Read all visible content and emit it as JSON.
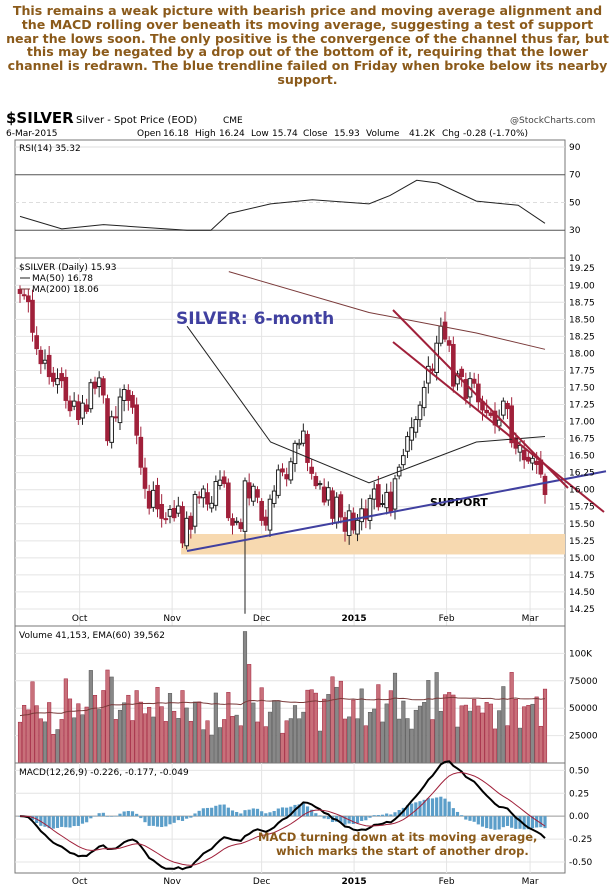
{
  "commentary": "This remains a weak picture with bearish price and moving average alignment and the MACD rolling over beneath its moving average, suggesting a test of support near the lows soon. The only positive is the convergence of the channel thus far, but this may be negated by a drop out of the bottom of it, requiring that the lower channel is redrawn. The blue trendline failed on Friday when broke below its nearby support.",
  "header": {
    "symbol": "$SILVER",
    "description": "Silver - Spot Price (EOD)",
    "exchange": "CME",
    "watermark": "@StockCharts.com",
    "date": "6-Mar-2015",
    "open_label": "Open",
    "open": "16.18",
    "high_label": "High",
    "high": "16.24",
    "low_label": "Low",
    "low": "15.74",
    "close_label": "Close",
    "close": "15.93",
    "volume_label": "Volume",
    "volume": "41.2K",
    "chg_label": "Chg",
    "chg": "-0.28 (-1.70%)"
  },
  "colors": {
    "up": "#222222",
    "down": "#a0203a",
    "ma50": "#222222",
    "ma200": "#7a3a3a",
    "trend_blue": "#4040a0",
    "channel": "#a0203a",
    "support": "#f7d9b0",
    "annotation": "#8b5a1a"
  },
  "chart_data": [
    {
      "type": "line",
      "title": "RSI(14) 35.32",
      "ylim": [
        10,
        95
      ],
      "yticks": [
        "90",
        "70",
        "50",
        "30",
        "10"
      ],
      "x": [
        "2014-09-11",
        "2014-09-25",
        "2014-10-09",
        "2014-10-23",
        "2014-11-06",
        "2014-11-14",
        "2014-11-20",
        "2014-12-04",
        "2014-12-18",
        "2015-01-06",
        "2015-01-13",
        "2015-01-22",
        "2015-01-29",
        "2015-02-11",
        "2015-02-25",
        "2015-03-06"
      ],
      "values": [
        40,
        31,
        34,
        32,
        30,
        30,
        42,
        49,
        52,
        49,
        55,
        66,
        64,
        51,
        48,
        35
      ]
    },
    {
      "type": "candlestick",
      "title": "$SILVER (Daily) 15.93",
      "ylim": [
        14.0,
        19.4
      ],
      "yticks": [
        "19.25",
        "19.00",
        "18.75",
        "18.50",
        "18.25",
        "18.00",
        "17.75",
        "17.50",
        "17.25",
        "17.00",
        "16.75",
        "16.50",
        "16.25",
        "16.00",
        "15.75",
        "15.50",
        "15.25",
        "15.00",
        "14.75",
        "14.50",
        "14.25"
      ],
      "xticks": [
        "Oct",
        "Nov",
        "Dec",
        "2015",
        "Feb",
        "Mar"
      ],
      "legend": [
        "MA(50) 16.78",
        "MA(200) 18.06"
      ],
      "annotations": [
        "SILVER: 6-month",
        "SUPPORT"
      ],
      "ma50": {
        "x": [
          "2014-11-06",
          "2014-12-04",
          "2015-01-06",
          "2015-02-11",
          "2015-03-06"
        ],
        "values": [
          18.4,
          16.7,
          16.1,
          16.7,
          16.78
        ]
      },
      "ma200": {
        "x": [
          "2014-11-20",
          "2015-01-06",
          "2015-02-11",
          "2015-03-06"
        ],
        "values": [
          19.2,
          18.6,
          18.3,
          18.06
        ]
      },
      "support": [
        15.05,
        15.35
      ],
      "trendline": {
        "x": [
          "2014-11-06",
          "2015-03-06"
        ],
        "values": [
          15.1,
          16.1
        ]
      },
      "close": [
        18.88,
        18.85,
        18.76,
        18.31,
        18.07,
        17.85,
        17.9,
        17.66,
        17.59,
        17.63,
        17.6,
        17.31,
        17.16,
        17.3,
        17.03,
        17.27,
        17.15,
        17.57,
        17.49,
        17.64,
        17.39,
        16.72,
        17.07,
        17.06,
        17.36,
        17.47,
        17.31,
        17.21,
        16.8,
        16.33,
        16.02,
        15.73,
        15.99,
        15.72,
        15.58,
        15.57,
        15.71,
        15.59,
        15.76,
        15.22,
        15.58,
        15.42,
        15.93,
        15.88,
        16.01,
        15.79,
        15.8,
        16.12,
        16.14,
        16.09,
        15.59,
        15.48,
        15.52,
        15.43,
        16.13,
        15.88,
        16.05,
        15.89,
        15.55,
        15.48,
        15.86,
        15.98,
        16.29,
        16.26,
        16.16,
        16.41,
        16.68,
        16.68,
        16.86,
        16.4,
        16.24,
        16.06,
        16.09,
        15.82,
        16.03,
        15.58,
        15.89,
        15.6,
        15.39,
        15.69,
        15.41,
        15.55,
        15.72,
        15.57,
        15.87,
        16.01,
        15.75,
        15.79,
        15.96,
        15.68,
        16.16,
        16.33,
        16.5,
        16.78,
        16.91,
        17.03,
        17.24,
        17.5,
        17.81,
        17.77,
        18.15,
        18.4,
        18.21,
        18.12,
        17.52,
        17.7,
        17.66,
        17.34,
        17.63,
        17.62,
        17.29,
        17.17,
        17.13,
        17.09,
        16.95,
        17.02,
        17.3,
        17.19,
        16.69,
        16.61,
        16.65,
        16.44,
        16.42,
        16.46,
        16.37,
        16.23,
        15.93
      ]
    },
    {
      "type": "bar",
      "title": "Volume 41,153, EMA(60) 39,562",
      "ylim": [
        0,
        125000
      ],
      "yticks": [
        "100K",
        "75000",
        "50000",
        "25000"
      ]
    },
    {
      "type": "line",
      "title": "MACD(12,26,9) -0.226, -0.177, -0.049",
      "ylim": [
        -0.62,
        0.58
      ],
      "yticks": [
        "0.50",
        "0.25",
        "0.00",
        "-0.25",
        "-0.50"
      ],
      "xticks": [
        "Oct",
        "Nov",
        "Dec",
        "2015",
        "Feb",
        "Mar"
      ],
      "annotations": [
        "MACD turning down at its moving average,",
        "which marks the start of another drop."
      ]
    }
  ]
}
